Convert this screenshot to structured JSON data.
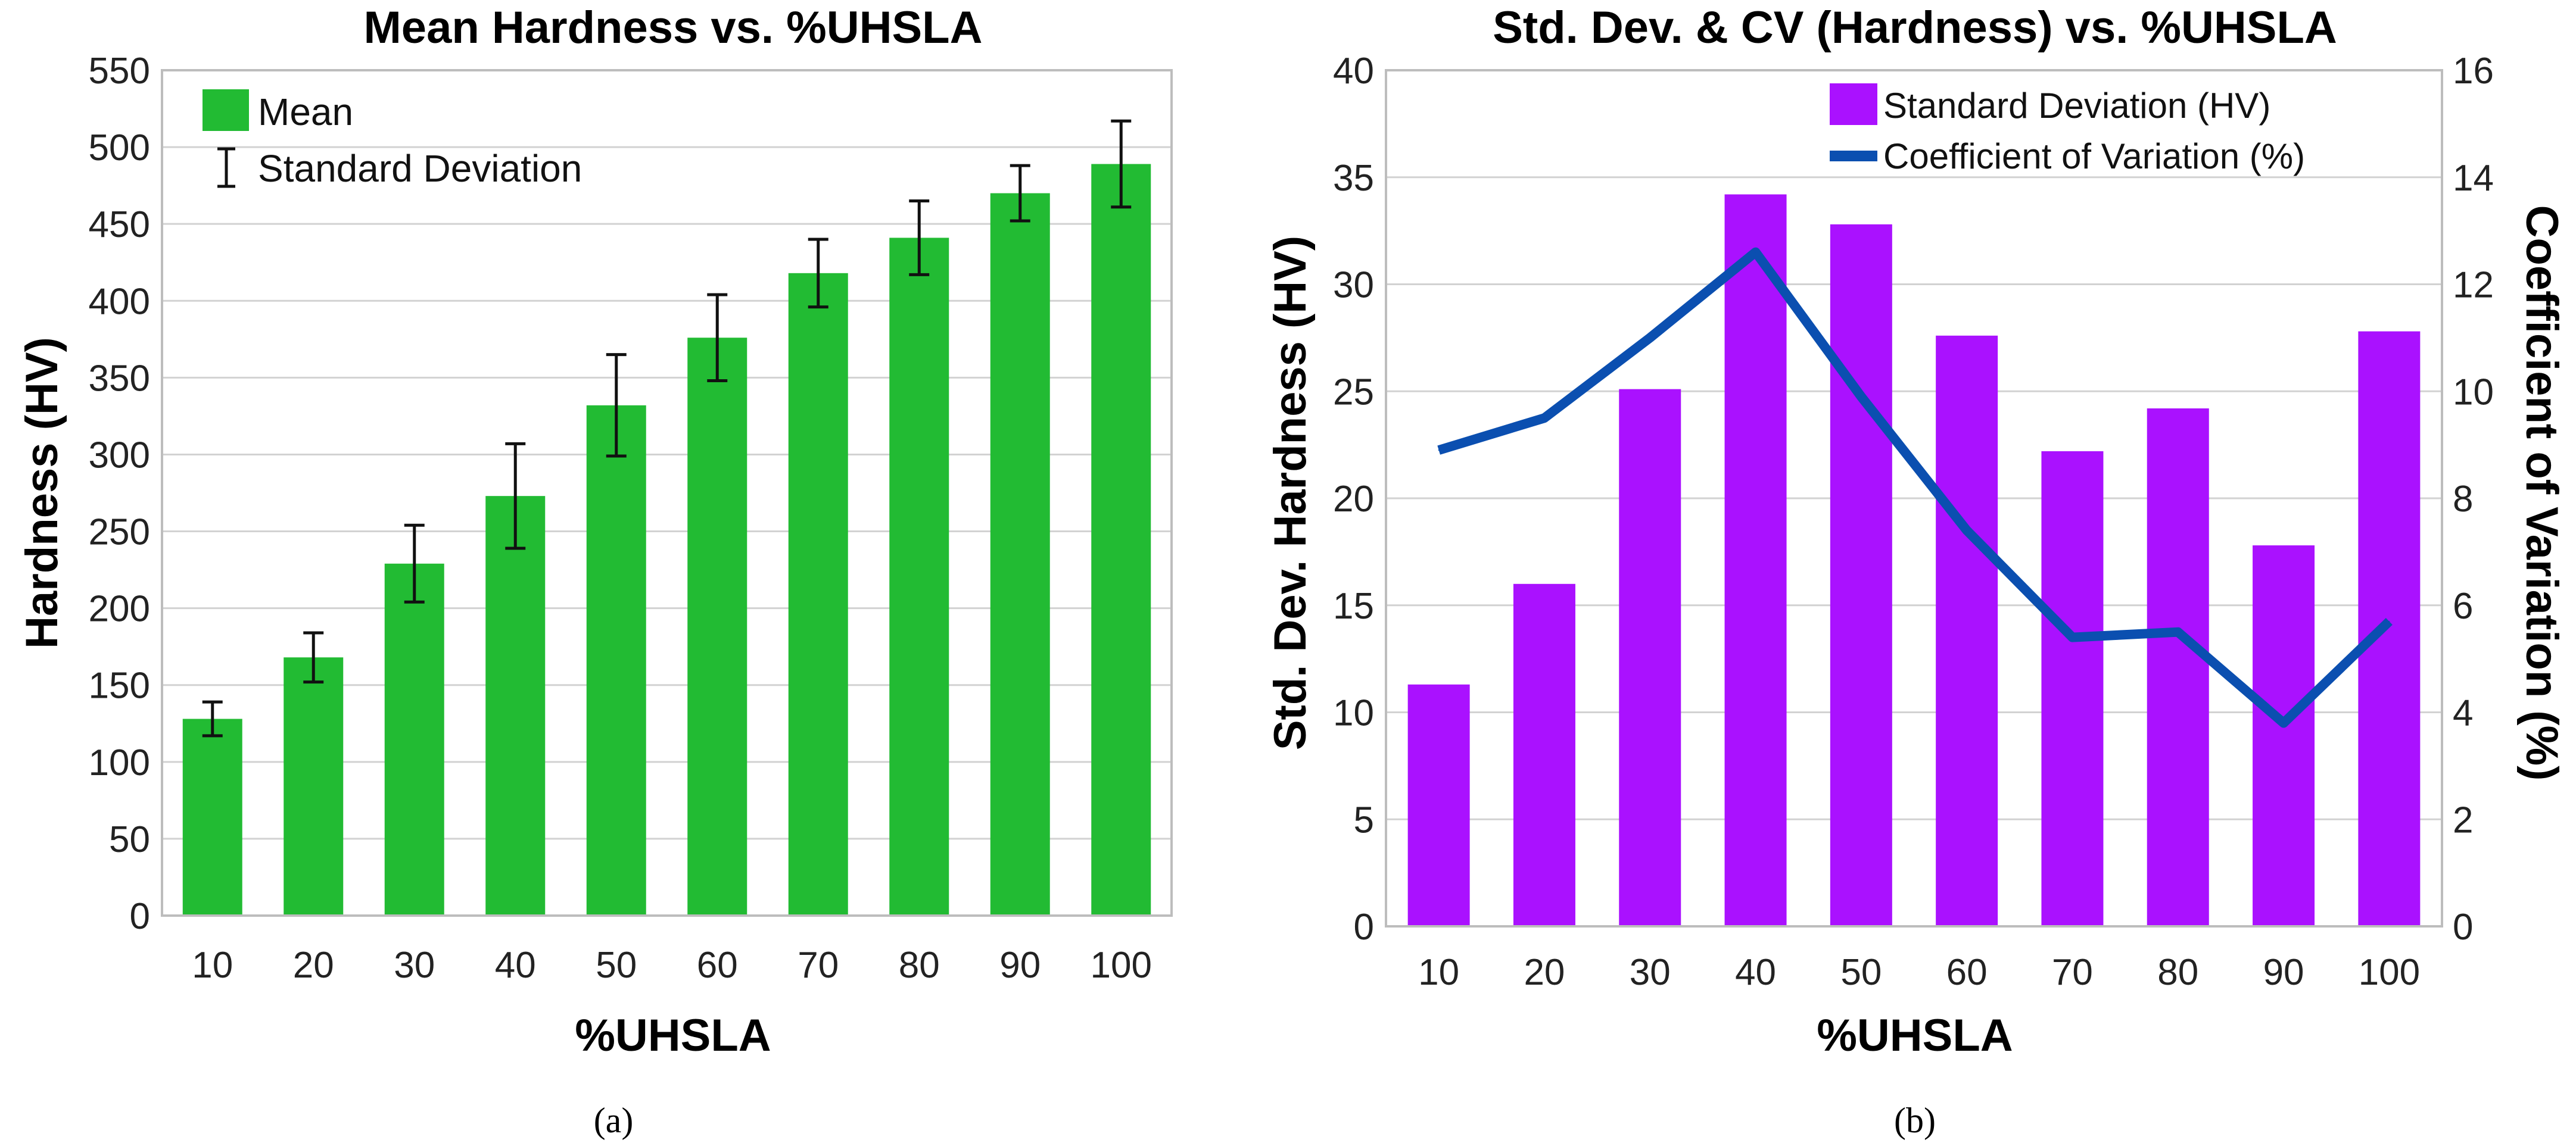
{
  "chart_data": [
    {
      "type": "bar",
      "title": "Mean Hardness vs. %UHSLA",
      "xlabel": "%UHSLA",
      "ylabel": "Hardness (HV)",
      "categories": [
        "10",
        "20",
        "30",
        "40",
        "50",
        "60",
        "70",
        "80",
        "90",
        "100"
      ],
      "ylim": [
        0,
        550
      ],
      "yticks": [
        0,
        50,
        100,
        150,
        200,
        250,
        300,
        350,
        400,
        450,
        500,
        550
      ],
      "series": [
        {
          "name": "Mean",
          "values": [
            128,
            168,
            229,
            273,
            332,
            376,
            418,
            441,
            470,
            489
          ]
        }
      ],
      "error": {
        "name": "Standard Deviation",
        "values": [
          11,
          16,
          25,
          34,
          33,
          28,
          22,
          24,
          18,
          28
        ]
      },
      "legend": [
        "Mean",
        "Standard Deviation"
      ],
      "legend_position": "top-left",
      "bar_color": "#22bb33",
      "grid": true,
      "caption": "(a)"
    },
    {
      "type": "bar",
      "title": "Std. Dev. & CV (Hardness) vs. %UHSLA",
      "xlabel": "%UHSLA",
      "ylabel": "Std. Dev. Hardness (HV)",
      "y2label": "Coefficient of Variation (%)",
      "categories": [
        "10",
        "20",
        "30",
        "40",
        "50",
        "60",
        "70",
        "80",
        "90",
        "100"
      ],
      "ylim": [
        0,
        40
      ],
      "yticks": [
        0,
        5,
        10,
        15,
        20,
        25,
        30,
        35,
        40
      ],
      "y2lim": [
        0,
        16
      ],
      "y2ticks": [
        0,
        2,
        4,
        6,
        8,
        10,
        12,
        14,
        16
      ],
      "series": [
        {
          "name": "Standard Deviation (HV)",
          "type": "bar",
          "axis": "left",
          "values": [
            11.3,
            16.0,
            25.1,
            34.2,
            32.8,
            27.6,
            22.2,
            24.2,
            17.8,
            27.8
          ]
        },
        {
          "name": "Coefficient of Variation (%)",
          "type": "line",
          "axis": "right",
          "values": [
            8.9,
            9.5,
            11.0,
            12.6,
            9.9,
            7.4,
            5.4,
            5.5,
            3.8,
            5.7
          ]
        }
      ],
      "legend": [
        "Standard Deviation (HV)",
        "Coefficient of Variation (%)"
      ],
      "legend_position": "top-right",
      "bar_color": "#aa11ff",
      "line_color": "#0b4fb0",
      "grid": true,
      "caption": "(b)"
    }
  ]
}
